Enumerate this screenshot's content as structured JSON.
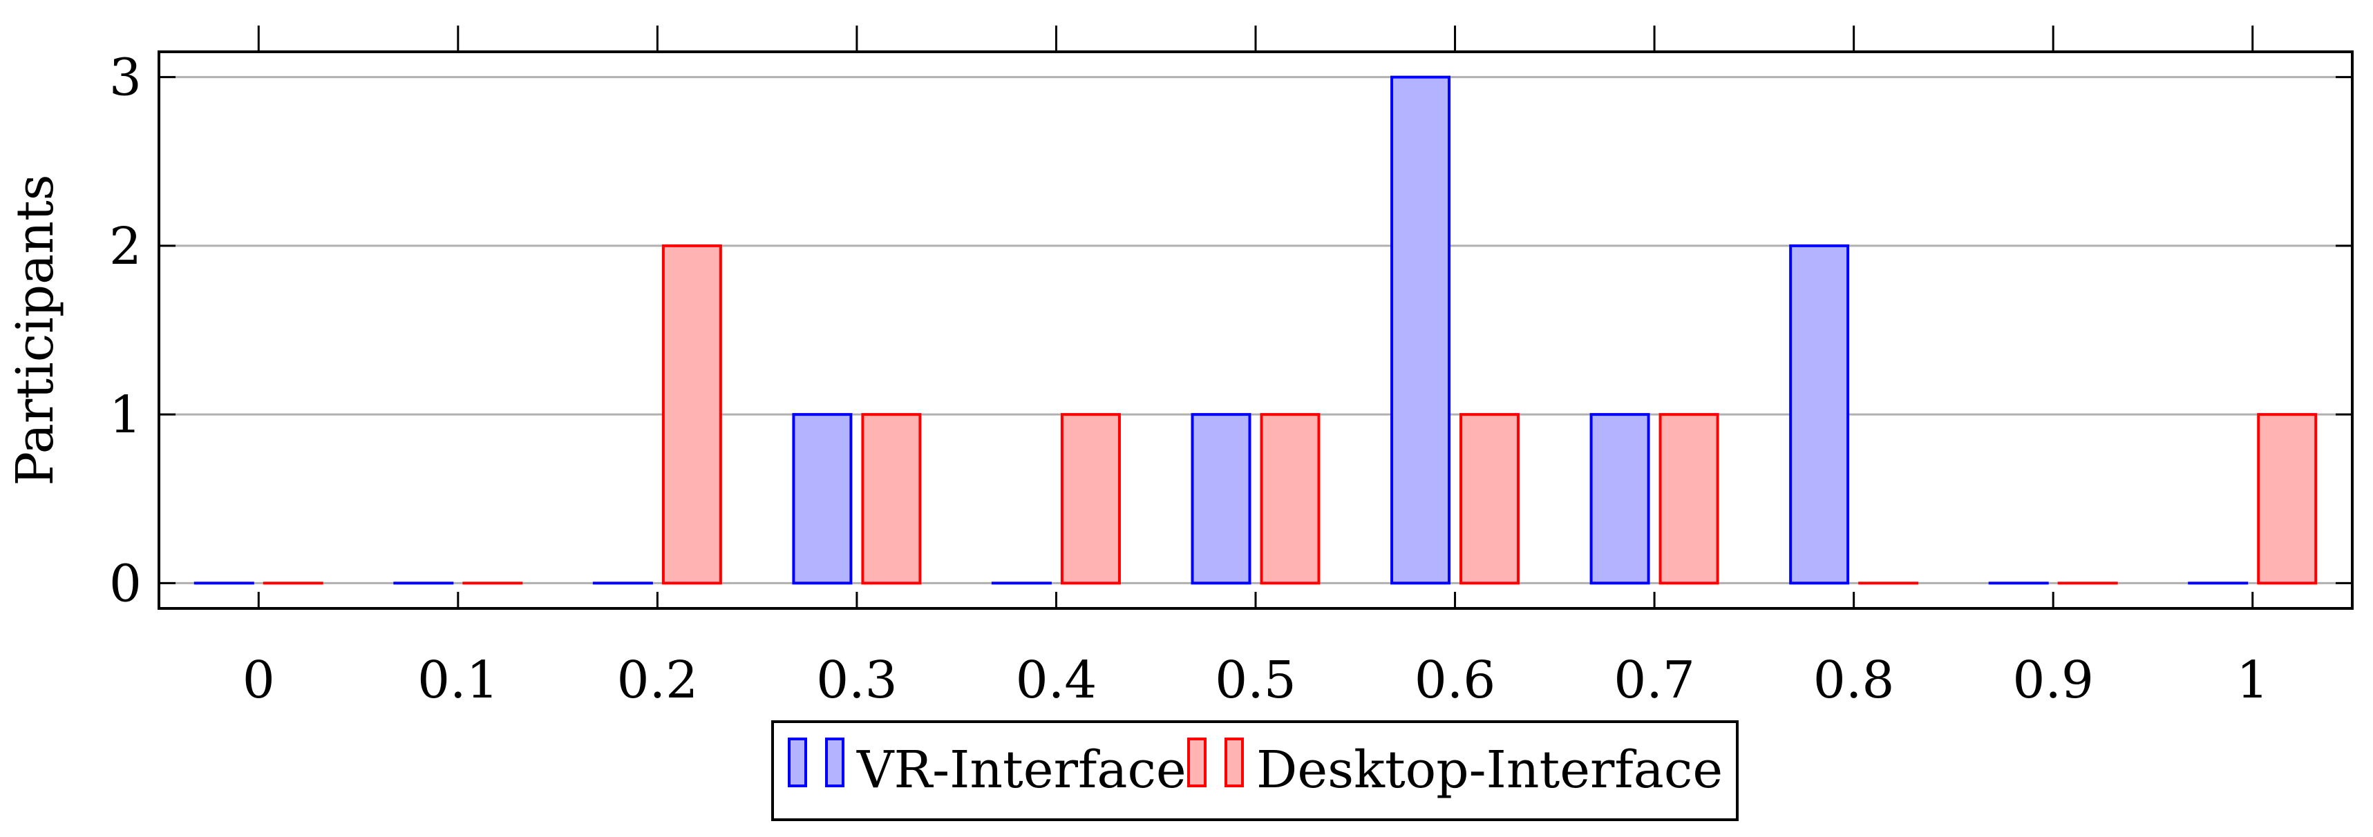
{
  "chart_data": {
    "type": "bar",
    "title": "",
    "xlabel": "",
    "ylabel": "Participants",
    "x": [
      0,
      0.1,
      0.2,
      0.3,
      0.4,
      0.5,
      0.6,
      0.7,
      0.8,
      0.9,
      1
    ],
    "x_tick_labels": [
      "0",
      "0.1",
      "0.2",
      "0.3",
      "0.4",
      "0.5",
      "0.6",
      "0.7",
      "0.8",
      "0.9",
      "1"
    ],
    "y_ticks": [
      0,
      1,
      2,
      3
    ],
    "ylim": [
      -0.15,
      3.15
    ],
    "xlim": [
      -0.05,
      1.05
    ],
    "grid": "horizontal",
    "legend_position": "bottom-center",
    "series": [
      {
        "name": "VR-Interface",
        "values": [
          0,
          0,
          0,
          1,
          0,
          1,
          3,
          1,
          2,
          0,
          0
        ],
        "fill": "#b3b3ff",
        "stroke": "#0000ff"
      },
      {
        "name": "Desktop-Interface",
        "values": [
          0,
          0,
          2,
          1,
          1,
          1,
          1,
          1,
          0,
          0,
          1
        ],
        "fill": "#ffb3b3",
        "stroke": "#ff0000"
      }
    ]
  }
}
